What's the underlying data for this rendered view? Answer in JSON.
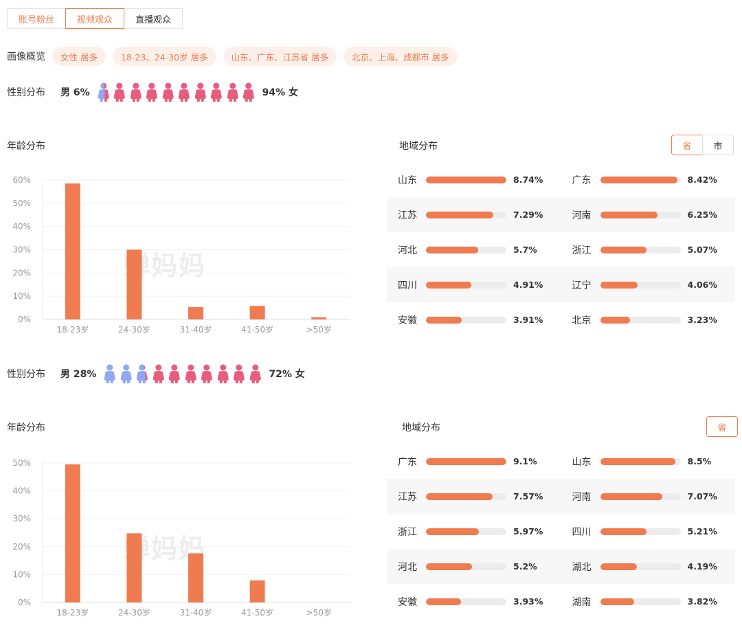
{
  "tabs": [
    {
      "label": "账号粉丝"
    },
    {
      "label": "视频观众"
    },
    {
      "label": "直播观众"
    }
  ],
  "overview": {
    "label": "画像概览",
    "tags": [
      "女性 居多",
      "18-23、24-30岁 居多",
      "山东、广东、江苏省 居多",
      "北京、上海、成都市 居多"
    ]
  },
  "panel1": {
    "gender": {
      "label": "性别分布",
      "male_text": "男 6%",
      "female_text": "94% 女",
      "male_share": 0.06
    },
    "age_title": "年龄分布",
    "region_title": "地域分布",
    "toggle": [
      "省",
      "市"
    ],
    "watermark": "蝉妈妈",
    "chart_data": {
      "type": "bar",
      "categories": [
        "18-23岁",
        "24-30岁",
        "31-40岁",
        "41-50岁",
        ">50岁"
      ],
      "values": [
        58.5,
        30,
        5.3,
        5.8,
        0.9
      ],
      "yticks": [
        "0%",
        "10%",
        "20%",
        "30%",
        "40%",
        "50%",
        "60%"
      ],
      "ylim": [
        0,
        60
      ]
    },
    "regions": [
      [
        {
          "name": "山东",
          "value": "8.74%",
          "pct": 8.74
        },
        {
          "name": "广东",
          "value": "8.42%",
          "pct": 8.42
        }
      ],
      [
        {
          "name": "江苏",
          "value": "7.29%",
          "pct": 7.29
        },
        {
          "name": "河南",
          "value": "6.25%",
          "pct": 6.25
        }
      ],
      [
        {
          "name": "河北",
          "value": "5.7%",
          "pct": 5.7
        },
        {
          "name": "浙江",
          "value": "5.07%",
          "pct": 5.07
        }
      ],
      [
        {
          "name": "四川",
          "value": "4.91%",
          "pct": 4.91
        },
        {
          "name": "辽宁",
          "value": "4.06%",
          "pct": 4.06
        }
      ],
      [
        {
          "name": "安徽",
          "value": "3.91%",
          "pct": 3.91
        },
        {
          "name": "北京",
          "value": "3.23%",
          "pct": 3.23
        }
      ]
    ]
  },
  "panel2": {
    "gender": {
      "label": "性别分布",
      "male_text": "男 28%",
      "female_text": "72% 女",
      "male_share": 0.28
    },
    "age_title": "年龄分布",
    "region_title": "地域分布",
    "toggle": [
      "省"
    ],
    "watermark": "蝉妈妈",
    "chart_data": {
      "type": "bar",
      "categories": [
        "18-23岁",
        "24-30岁",
        "31-40岁",
        "41-50岁",
        ">50岁"
      ],
      "values": [
        49.5,
        24.8,
        17.6,
        7.9,
        0
      ],
      "yticks": [
        "0%",
        "10%",
        "20%",
        "30%",
        "40%",
        "50%"
      ],
      "ylim": [
        0,
        50
      ]
    },
    "regions": [
      [
        {
          "name": "广东",
          "value": "9.1%",
          "pct": 9.1
        },
        {
          "name": "山东",
          "value": "8.5%",
          "pct": 8.5
        }
      ],
      [
        {
          "name": "江苏",
          "value": "7.57%",
          "pct": 7.57
        },
        {
          "name": "河南",
          "value": "7.07%",
          "pct": 7.07
        }
      ],
      [
        {
          "name": "浙江",
          "value": "5.97%",
          "pct": 5.97
        },
        {
          "name": "四川",
          "value": "5.21%",
          "pct": 5.21
        }
      ],
      [
        {
          "name": "河北",
          "value": "5.2%",
          "pct": 5.2
        },
        {
          "name": "湖北",
          "value": "4.19%",
          "pct": 4.19
        }
      ],
      [
        {
          "name": "安徽",
          "value": "3.93%",
          "pct": 3.93
        },
        {
          "name": "湖南",
          "value": "3.82%",
          "pct": 3.82
        }
      ]
    ]
  },
  "colors": {
    "accent": "#ef7b50",
    "male": "#8fa8f0",
    "female": "#e85c7e",
    "track": "#ececec"
  }
}
